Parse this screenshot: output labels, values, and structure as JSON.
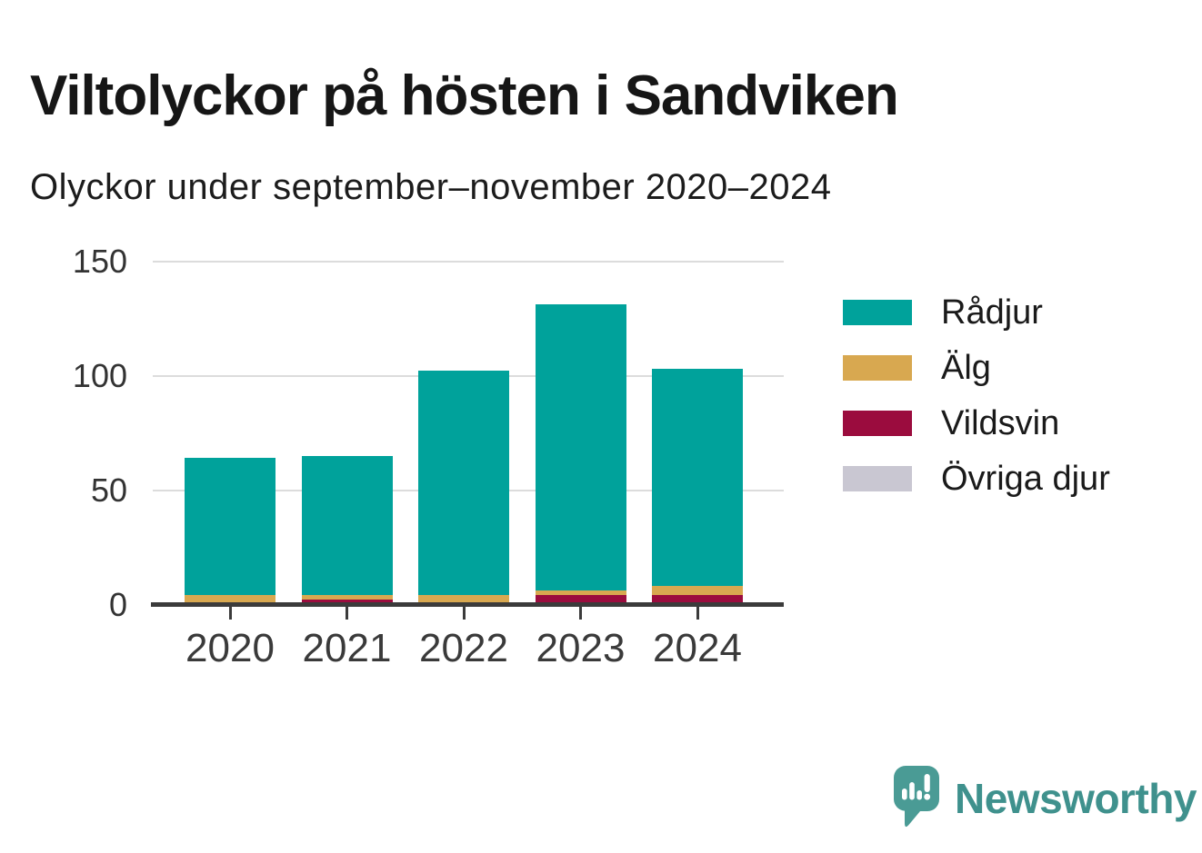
{
  "title": "Viltolyckor på hösten i Sandviken",
  "subtitle": "Olyckor under september–november 2020–2024",
  "y_axis": {
    "tick_labels": [
      "0",
      "50",
      "100",
      "150"
    ]
  },
  "x_axis": {
    "tick_labels": [
      "2020",
      "2021",
      "2022",
      "2023",
      "2024"
    ]
  },
  "branding": {
    "name": "Newsworthy",
    "icon": "bar-chart-speech-bubble-icon",
    "icon_color": "#4a9b95",
    "text_color": "#3f918d"
  },
  "colors": {
    "radjur": "#00a29b",
    "alg": "#d8a850",
    "vildsvin": "#9b0c3e",
    "ovriga_djur": "#c9c7d2",
    "gridline": "#dcdcdc",
    "axis": "#3b3b3b"
  },
  "chart_data": {
    "type": "bar",
    "stacked": true,
    "title": "Viltolyckor på hösten i Sandviken",
    "subtitle": "Olyckor under september–november 2020–2024",
    "categories": [
      "2020",
      "2021",
      "2022",
      "2023",
      "2024"
    ],
    "series": [
      {
        "name": "Rådjur",
        "color": "#00a29b",
        "values": [
          60,
          61,
          98,
          125,
          95
        ]
      },
      {
        "name": "Älg",
        "color": "#d8a850",
        "values": [
          4,
          2,
          4,
          2,
          4
        ]
      },
      {
        "name": "Vildsvin",
        "color": "#9b0c3e",
        "values": [
          0,
          2,
          0,
          4,
          4
        ]
      },
      {
        "name": "Övriga djur",
        "color": "#c9c7d2",
        "values": [
          0,
          0,
          0,
          0,
          0
        ]
      }
    ],
    "totals": [
      64,
      65,
      102,
      131,
      103
    ],
    "stack_order_bottom_to_top": [
      "Övriga djur",
      "Vildsvin",
      "Älg",
      "Rådjur"
    ],
    "xlabel": "",
    "ylabel": "",
    "ylim": [
      0,
      150
    ],
    "yticks": [
      0,
      50,
      100,
      150
    ],
    "grid": true,
    "legend_position": "right"
  }
}
